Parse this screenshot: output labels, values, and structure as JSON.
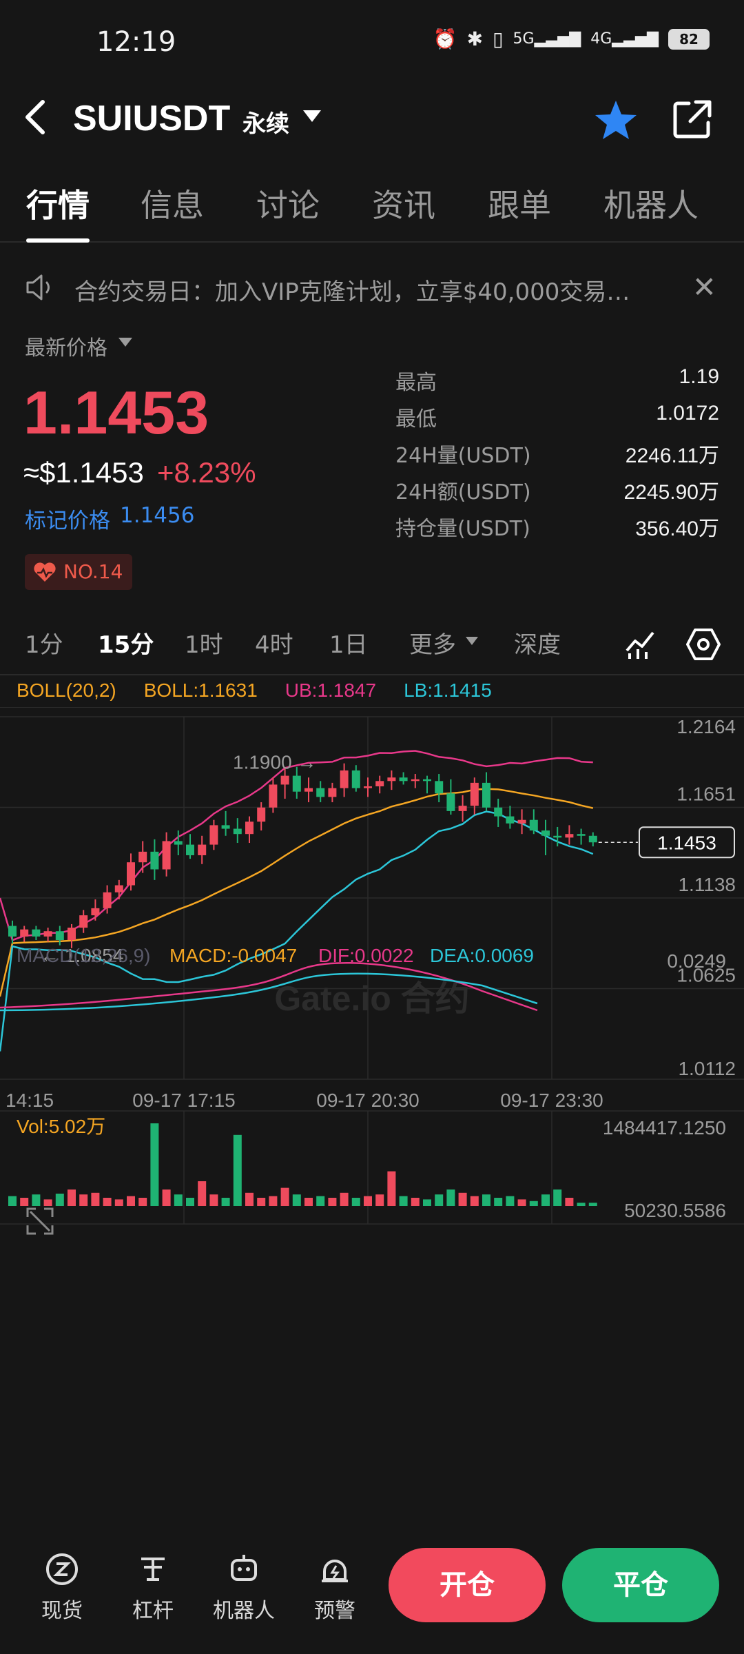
{
  "status": {
    "time": "12:19",
    "battery": "82"
  },
  "header": {
    "symbol": "SUIUSDT",
    "contract_type": "永续"
  },
  "tabs": [
    "行情",
    "信息",
    "讨论",
    "资讯",
    "跟单",
    "机器人"
  ],
  "notice": {
    "text": "合约交易日：加入VIP克隆计划，立享$40,000交易…"
  },
  "price": {
    "latest_label": "最新价格",
    "last": "1.1453",
    "usd": "≈$1.1453",
    "change": "+8.23%",
    "mark_label": "标记价格",
    "mark_value": "1.1456",
    "rank": "NO.14"
  },
  "stats": [
    {
      "label": "最高",
      "value": "1.19"
    },
    {
      "label": "最低",
      "value": "1.0172"
    },
    {
      "label": "24H量(USDT)",
      "value": "2246.11万"
    },
    {
      "label": "24H额(USDT)",
      "value": "2245.90万"
    },
    {
      "label": "持仓量(USDT)",
      "value": "356.40万"
    }
  ],
  "intervals": [
    "1分",
    "15分",
    "1时",
    "4时",
    "1日",
    "更多",
    "深度"
  ],
  "boll": {
    "name": "BOLL(20,2)",
    "boll": "BOLL:1.1631",
    "ub": "UB:1.1847",
    "lb": "LB:1.1415"
  },
  "chart_data": {
    "type": "candlestick",
    "price_axis": [
      "1.2164",
      "1.1651",
      "1.1138",
      "1.0625",
      "1.0112"
    ],
    "time_axis": [
      "14:15",
      "09-17 17:15",
      "09-17 20:30",
      "09-17 23:30"
    ],
    "current_price_tag": "1.1453",
    "high_marker": "1.1900 →",
    "low_marker": "← 1.0854",
    "watermark": "Gate.io 合约",
    "ylim": [
      1.0112,
      1.2164
    ],
    "candles": [
      [
        1.098,
        1.101,
        1.088,
        1.092
      ],
      [
        1.092,
        1.098,
        1.089,
        1.096
      ],
      [
        1.096,
        1.098,
        1.09,
        1.092
      ],
      [
        1.092,
        1.097,
        1.089,
        1.095
      ],
      [
        1.095,
        1.098,
        1.087,
        1.09
      ],
      [
        1.09,
        1.099,
        1.0854,
        1.097
      ],
      [
        1.097,
        1.107,
        1.094,
        1.104
      ],
      [
        1.104,
        1.113,
        1.101,
        1.108
      ],
      [
        1.108,
        1.121,
        1.105,
        1.117
      ],
      [
        1.117,
        1.124,
        1.113,
        1.121
      ],
      [
        1.121,
        1.139,
        1.118,
        1.134
      ],
      [
        1.134,
        1.146,
        1.128,
        1.14
      ],
      [
        1.14,
        1.147,
        1.124,
        1.13
      ],
      [
        1.13,
        1.151,
        1.126,
        1.146
      ],
      [
        1.146,
        1.152,
        1.138,
        1.144
      ],
      [
        1.144,
        1.15,
        1.136,
        1.138
      ],
      [
        1.138,
        1.149,
        1.133,
        1.144
      ],
      [
        1.144,
        1.158,
        1.141,
        1.155
      ],
      [
        1.155,
        1.163,
        1.149,
        1.153
      ],
      [
        1.153,
        1.159,
        1.145,
        1.15
      ],
      [
        1.15,
        1.16,
        1.145,
        1.157
      ],
      [
        1.157,
        1.168,
        1.152,
        1.165
      ],
      [
        1.165,
        1.182,
        1.162,
        1.178
      ],
      [
        1.178,
        1.187,
        1.17,
        1.183
      ],
      [
        1.183,
        1.188,
        1.17,
        1.174
      ],
      [
        1.174,
        1.182,
        1.168,
        1.176
      ],
      [
        1.176,
        1.18,
        1.168,
        1.171
      ],
      [
        1.171,
        1.179,
        1.168,
        1.176
      ],
      [
        1.176,
        1.19,
        1.171,
        1.186
      ],
      [
        1.186,
        1.189,
        1.174,
        1.176
      ],
      [
        1.176,
        1.182,
        1.171,
        1.177
      ],
      [
        1.177,
        1.183,
        1.173,
        1.18
      ],
      [
        1.18,
        1.186,
        1.175,
        1.182
      ],
      [
        1.182,
        1.185,
        1.178,
        1.18
      ],
      [
        1.18,
        1.184,
        1.176,
        1.181
      ],
      [
        1.181,
        1.183,
        1.173,
        1.18
      ],
      [
        1.18,
        1.184,
        1.168,
        1.173
      ],
      [
        1.173,
        1.181,
        1.161,
        1.163
      ],
      [
        1.163,
        1.172,
        1.157,
        1.166
      ],
      [
        1.166,
        1.182,
        1.161,
        1.179
      ],
      [
        1.179,
        1.185,
        1.163,
        1.165
      ],
      [
        1.165,
        1.17,
        1.154,
        1.16
      ],
      [
        1.16,
        1.166,
        1.153,
        1.156
      ],
      [
        1.156,
        1.164,
        1.15,
        1.158
      ],
      [
        1.158,
        1.164,
        1.15,
        1.152
      ],
      [
        1.152,
        1.158,
        1.138,
        1.149
      ],
      [
        1.149,
        1.154,
        1.143,
        1.148
      ],
      [
        1.148,
        1.155,
        1.144,
        1.15
      ],
      [
        1.15,
        1.153,
        1.144,
        1.149
      ],
      [
        1.149,
        1.151,
        1.143,
        1.1453
      ]
    ],
    "volume": {
      "label": "Vol:5.02万",
      "axis": [
        "1484417.1250",
        "50230.5586"
      ]
    },
    "macd": {
      "name": "MACD(12,26,9)",
      "macd": "MACD:-0.0047",
      "dif": "DIF:0.0022",
      "dea": "DEA:0.0069",
      "axis": "0.0249"
    }
  },
  "bottom": {
    "items": [
      "现货",
      "杠杆",
      "机器人",
      "预警"
    ],
    "open": "开仓",
    "close": "平仓"
  },
  "colors": {
    "up": "#ef4b5d",
    "down": "#1fb373",
    "boll": "#f5a623",
    "ub": "#e8388a",
    "lb": "#2cc6d8",
    "accent": "#3b8cf0"
  }
}
